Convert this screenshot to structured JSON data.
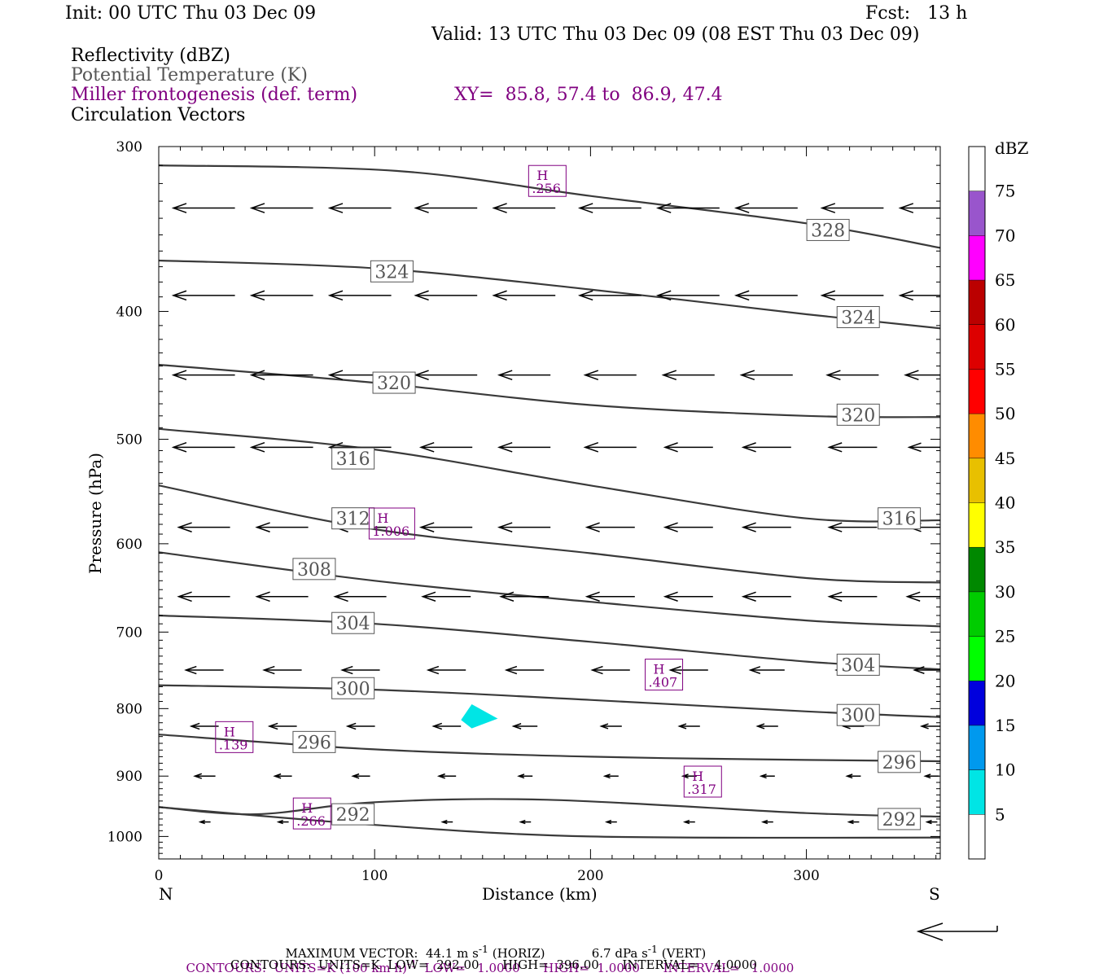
{
  "header": {
    "init": "Init: 00 UTC Thu 03 Dec 09",
    "fcst": "Fcst:   13 h",
    "valid": "Valid: 13 UTC Thu 03 Dec 09 (08 EST Thu 03 Dec 09)",
    "line1": "Reflectivity (dBZ)",
    "line2": "Potential Temperature (K)",
    "line3": "Miller frontogenesis (def. term)",
    "xy": "XY=  85.8, 57.4 to  86.9, 47.4",
    "line4": "Circulation Vectors"
  },
  "footer": {
    "maxvec_label": "MAXIMUM VECTOR:",
    "maxvec_h": "44.1",
    "maxvec_h_unit": "(HORIZ)",
    "maxvec_v": "6.7",
    "maxvec_v_unit": "(VERT)",
    "contours1": "CONTOURS:  UNITS=K (100 km h)",
    "contours1_rest": "LOW=   1.0000      HIGH=  1.0000      INTERVAL=   1.0000",
    "contours2": "CONTOURS:  UNITS=K  LOW=  292.00      HIGH=  396.00      INTERVAL=    4.0000"
  },
  "colors": {
    "theta": "#3a3a3a",
    "fronto": "#800080",
    "vector": "#000000",
    "reflectivity_cell": "#00e5e5"
  },
  "chart_data": {
    "type": "cross-section",
    "xlabel": "Distance (km)",
    "ylabel": "Pressure (hPa)",
    "xlim": [
      0,
      362
    ],
    "ylim": [
      1040,
      300
    ],
    "y_log": true,
    "x_ticks": [
      0,
      100,
      200,
      300
    ],
    "y_ticks": [
      300,
      400,
      500,
      600,
      700,
      800,
      900,
      1000
    ],
    "x_end_left": "N",
    "x_end_right": "S",
    "colorbar": {
      "unit": "dBZ",
      "levels": [
        5,
        10,
        15,
        20,
        25,
        30,
        35,
        40,
        45,
        50,
        55,
        60,
        65,
        70,
        75
      ],
      "colors": [
        "#00e5e5",
        "#0099ee",
        "#0000dd",
        "#00ff00",
        "#00cc00",
        "#008800",
        "#ffff00",
        "#e8c000",
        "#ff8c00",
        "#ff0000",
        "#dd0000",
        "#bb0000",
        "#ff00ff",
        "#9955cc",
        "#ffffff"
      ]
    },
    "theta_contours": [
      {
        "value": 328,
        "label_at": [
          [
            310,
            347
          ]
        ],
        "points": [
          [
            0,
            310
          ],
          [
            110,
            313
          ],
          [
            200,
            327
          ],
          [
            300,
            343
          ],
          [
            362,
            358
          ]
        ]
      },
      {
        "value": 324,
        "label_at": [
          [
            108,
            373
          ],
          [
            324,
            404
          ]
        ],
        "points": [
          [
            0,
            366
          ],
          [
            100,
            371
          ],
          [
            200,
            385
          ],
          [
            300,
            402
          ],
          [
            362,
            412
          ]
        ]
      },
      {
        "value": 320,
        "label_at": [
          [
            109,
            453
          ],
          [
            324,
            479
          ]
        ],
        "points": [
          [
            0,
            439
          ],
          [
            100,
            453
          ],
          [
            200,
            471
          ],
          [
            300,
            480
          ],
          [
            362,
            481
          ]
        ]
      },
      {
        "value": 316,
        "label_at": [
          [
            90,
            517
          ],
          [
            343,
            574
          ]
        ],
        "points": [
          [
            0,
            491
          ],
          [
            100,
            509
          ],
          [
            200,
            542
          ],
          [
            300,
            574
          ],
          [
            362,
            576
          ]
        ]
      },
      {
        "value": 312,
        "label_at": [
          [
            90,
            574
          ]
        ],
        "points": [
          [
            0,
            542
          ],
          [
            100,
            585
          ],
          [
            200,
            610
          ],
          [
            300,
            637
          ],
          [
            362,
            642
          ]
        ]
      },
      {
        "value": 308,
        "label_at": [
          [
            72,
            627
          ]
        ],
        "points": [
          [
            0,
            609
          ],
          [
            100,
            640
          ],
          [
            200,
            664
          ],
          [
            300,
            686
          ],
          [
            362,
            693
          ]
        ]
      },
      {
        "value": 304,
        "label_at": [
          [
            90,
            689
          ],
          [
            324,
            741
          ]
        ],
        "points": [
          [
            0,
            680
          ],
          [
            100,
            690
          ],
          [
            200,
            712
          ],
          [
            300,
            737
          ],
          [
            362,
            747
          ]
        ]
      },
      {
        "value": 300,
        "label_at": [
          [
            90,
            772
          ],
          [
            324,
            809
          ]
        ],
        "points": [
          [
            0,
            768
          ],
          [
            100,
            774
          ],
          [
            200,
            788
          ],
          [
            300,
            804
          ],
          [
            362,
            812
          ]
        ]
      },
      {
        "value": 296,
        "label_at": [
          [
            72,
            848
          ],
          [
            343,
            878
          ]
        ],
        "points": [
          [
            0,
            837
          ],
          [
            100,
            859
          ],
          [
            200,
            870
          ],
          [
            300,
            875
          ],
          [
            362,
            877
          ]
        ]
      },
      {
        "value": 292,
        "label_at": [
          [
            90,
            962
          ],
          [
            343,
            970
          ]
        ],
        "points": [
          [
            0,
            950
          ],
          [
            45,
            962
          ],
          [
            100,
            942
          ],
          [
            180,
            938
          ],
          [
            300,
            960
          ],
          [
            362,
            966
          ]
        ]
      }
    ],
    "lowest_contour_points": [
      [
        0,
        950
      ],
      [
        100,
        980
      ],
      [
        200,
        1000
      ],
      [
        362,
        1002
      ]
    ],
    "fronto_maxima": [
      {
        "label": "H",
        "value": ".256",
        "x": 180,
        "p": 319
      },
      {
        "label": "H",
        "value": "1.006",
        "x": 108,
        "p": 580
      },
      {
        "label": "H",
        "value": ".407",
        "x": 234,
        "p": 755
      },
      {
        "label": "H",
        "value": ".139",
        "x": 35,
        "p": 842
      },
      {
        "label": "H",
        "value": ".317",
        "x": 252,
        "p": 910
      },
      {
        "label": "H",
        "value": ".266",
        "x": 71,
        "p": 962
      }
    ],
    "reflectivity_cells": [
      {
        "dbz_min": 5,
        "dbz_max": 10,
        "polygon": [
          [
            145,
            794
          ],
          [
            157,
            814
          ],
          [
            145,
            828
          ],
          [
            140,
            816
          ]
        ]
      }
    ],
    "vector_rows": [
      {
        "p": 334,
        "u": [
          -36,
          -36,
          -36,
          -36,
          -36,
          -36,
          -36,
          -36,
          -36,
          -36
        ]
      },
      {
        "p": 389,
        "u": [
          -36,
          -36,
          -36,
          -36,
          -36,
          -36,
          -36,
          -36,
          -36,
          -36
        ]
      },
      {
        "p": 447,
        "u": [
          -36,
          -36,
          -36,
          -36,
          -30,
          -30,
          -30,
          -30,
          -30,
          -30
        ]
      },
      {
        "p": 507,
        "u": [
          -36,
          -36,
          -36,
          -30,
          -30,
          -30,
          -28,
          -28,
          -28,
          -26
        ]
      },
      {
        "p": 583,
        "u": [
          -30,
          -30,
          -30,
          -30,
          -30,
          -28,
          -28,
          -28,
          -28,
          -26
        ]
      },
      {
        "p": 658,
        "u": [
          -30,
          -30,
          -30,
          -28,
          -28,
          -28,
          -28,
          -28,
          -28,
          -28
        ]
      },
      {
        "p": 748,
        "u": [
          -22,
          -22,
          -22,
          -22,
          -22,
          -22,
          -22,
          -20,
          -20,
          -20
        ]
      },
      {
        "p": 825,
        "u": [
          -16,
          -16,
          -16,
          -16,
          -14,
          -12,
          -12,
          -12,
          -12,
          -12
        ]
      },
      {
        "p": 900,
        "u": [
          -12,
          -10,
          -10,
          -10,
          -8,
          -8,
          -8,
          -8,
          -8,
          -8
        ]
      },
      {
        "p": 975,
        "u": [
          -6,
          -6,
          -6,
          -6,
          -6,
          -6,
          -6,
          -6,
          -6,
          -6
        ]
      }
    ]
  }
}
